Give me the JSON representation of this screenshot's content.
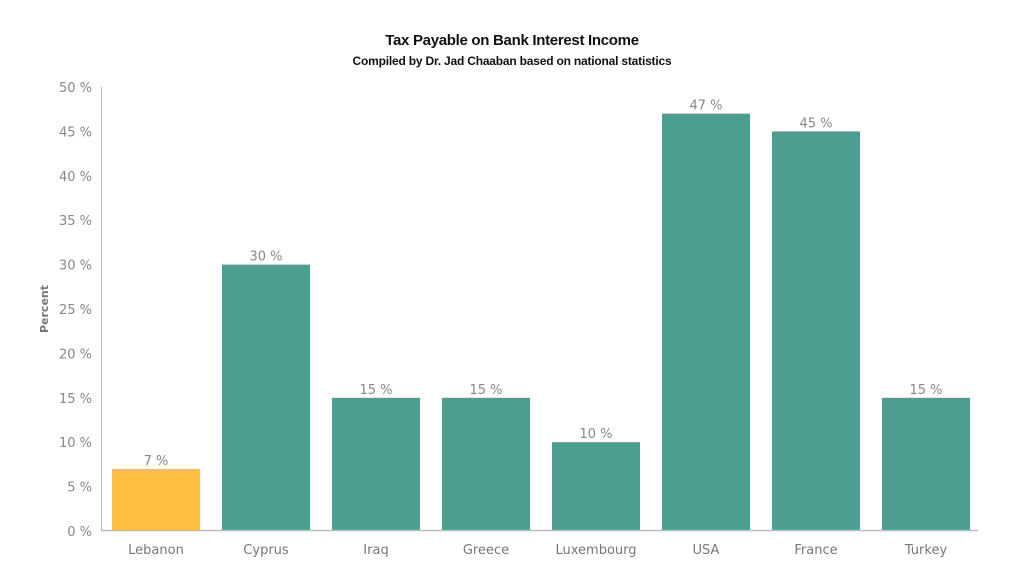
{
  "chart_data": {
    "type": "bar",
    "title": "Tax Payable on Bank Interest Income",
    "subtitle": "Compiled by Dr. Jad Chaaban based on national statistics",
    "xlabel": "",
    "ylabel": "Percent",
    "ylim": [
      0,
      50
    ],
    "yticks": [
      0,
      5,
      10,
      15,
      20,
      25,
      30,
      35,
      40,
      45,
      50
    ],
    "tick_suffix": " %",
    "categories": [
      "Lebanon",
      "Cyprus",
      "Iraq",
      "Greece",
      "Luxembourg",
      "USA",
      "France",
      "Turkey"
    ],
    "values": [
      7,
      30,
      15,
      15,
      10,
      47,
      45,
      15
    ],
    "data_labels": [
      "7 %",
      "30 %",
      "15 %",
      "15 %",
      "10 %",
      "47 %",
      "45 %",
      "15 %"
    ],
    "colors": {
      "highlight": "#FFBF40",
      "default": "#4C9E91",
      "axis": "#BBBBBB"
    },
    "highlight_category": "Lebanon",
    "grid": false,
    "legend": "none"
  }
}
